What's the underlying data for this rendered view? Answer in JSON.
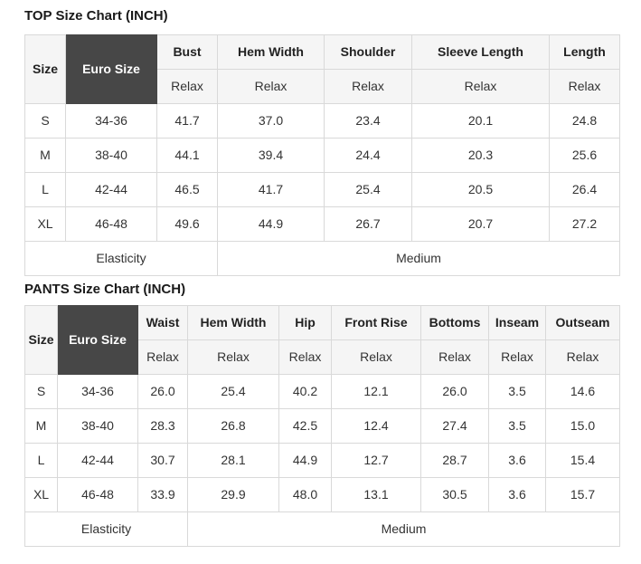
{
  "colors": {
    "dark_cell_bg": "#474747",
    "dark_cell_text": "#ffffff",
    "header_bg": "#f5f5f5",
    "border": "#d9d9d9",
    "text": "#333333"
  },
  "top_chart": {
    "title": "TOP Size Chart (INCH)",
    "columns": [
      {
        "label": "Size",
        "style": "plain"
      },
      {
        "label": "Euro Size",
        "style": "dark"
      },
      {
        "label": "Bust",
        "style": "measure",
        "sub": "Relax"
      },
      {
        "label": "Hem Width",
        "style": "measure",
        "sub": "Relax"
      },
      {
        "label": "Shoulder",
        "style": "measure",
        "sub": "Relax"
      },
      {
        "label": "Sleeve Length",
        "style": "measure",
        "sub": "Relax"
      },
      {
        "label": "Length",
        "style": "measure",
        "sub": "Relax"
      }
    ],
    "rows": [
      [
        "S",
        "34-36",
        "41.7",
        "37.0",
        "23.4",
        "20.1",
        "24.8"
      ],
      [
        "M",
        "38-40",
        "44.1",
        "39.4",
        "24.4",
        "20.3",
        "25.6"
      ],
      [
        "L",
        "42-44",
        "46.5",
        "41.7",
        "25.4",
        "20.5",
        "26.4"
      ],
      [
        "XL",
        "46-48",
        "49.6",
        "44.9",
        "26.7",
        "20.7",
        "27.2"
      ]
    ],
    "footer": {
      "label": "Elasticity",
      "label_span": 3,
      "value": "Medium",
      "value_span": 4
    }
  },
  "pants_chart": {
    "title": "PANTS Size Chart (INCH)",
    "columns": [
      {
        "label": "Size",
        "style": "plain"
      },
      {
        "label": "Euro Size",
        "style": "dark"
      },
      {
        "label": "Waist",
        "style": "measure",
        "sub": "Relax"
      },
      {
        "label": "Hem Width",
        "style": "measure",
        "sub": "Relax"
      },
      {
        "label": "Hip",
        "style": "measure",
        "sub": "Relax"
      },
      {
        "label": "Front Rise",
        "style": "measure",
        "sub": "Relax"
      },
      {
        "label": "Bottoms",
        "style": "measure",
        "sub": "Relax"
      },
      {
        "label": "Inseam",
        "style": "measure",
        "sub": "Relax"
      },
      {
        "label": "Outseam",
        "style": "measure",
        "sub": "Relax"
      }
    ],
    "rows": [
      [
        "S",
        "34-36",
        "26.0",
        "25.4",
        "40.2",
        "12.1",
        "26.0",
        "3.5",
        "14.6"
      ],
      [
        "M",
        "38-40",
        "28.3",
        "26.8",
        "42.5",
        "12.4",
        "27.4",
        "3.5",
        "15.0"
      ],
      [
        "L",
        "42-44",
        "30.7",
        "28.1",
        "44.9",
        "12.7",
        "28.7",
        "3.6",
        "15.4"
      ],
      [
        "XL",
        "46-48",
        "33.9",
        "29.9",
        "48.0",
        "13.1",
        "30.5",
        "3.6",
        "15.7"
      ]
    ],
    "footer": {
      "label": "Elasticity",
      "label_span": 3,
      "value": "Medium",
      "value_span": 6
    }
  }
}
